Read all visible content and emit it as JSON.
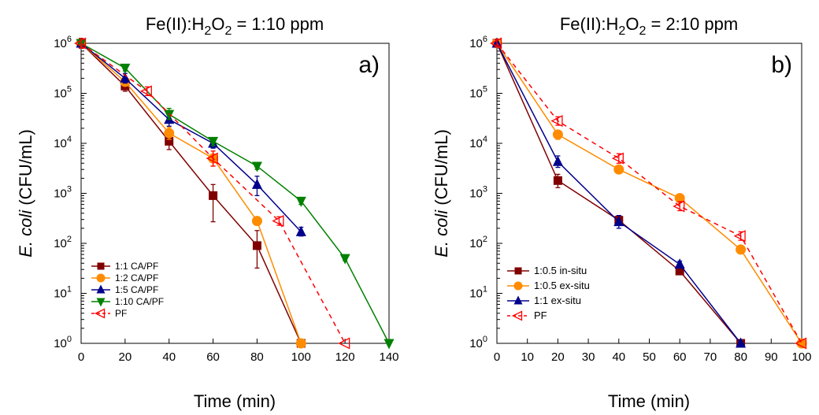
{
  "chart_data": [
    {
      "type": "line",
      "panel_label": "a)",
      "title_parts": [
        "Fe(II):H",
        "2",
        "O",
        "2",
        " = 1:10 ppm"
      ],
      "xlabel": "Time (min)",
      "ylabel_italic": "E. coli",
      "ylabel_rest": " (CFU/mL)",
      "xlim": [
        0,
        140
      ],
      "ylim": [
        1,
        1000000
      ],
      "yscale": "log",
      "xticks": [
        0,
        20,
        40,
        60,
        80,
        100,
        120,
        140
      ],
      "yticks_exp": [
        0,
        1,
        2,
        3,
        4,
        5,
        6
      ],
      "ytick_base": "10",
      "legend_position": "lower-left",
      "series": [
        {
          "name": "1:1 CA/PF",
          "color": "#800000",
          "marker": "square",
          "dashed": false,
          "x": [
            0,
            20,
            40,
            60,
            80,
            100
          ],
          "y": [
            1000000,
            140000,
            11000,
            900,
            90,
            1
          ],
          "err_lo": [
            800000,
            110000,
            7500,
            270,
            32,
            1
          ],
          "err_hi": [
            1250000,
            175000,
            15000,
            1500,
            180,
            1
          ]
        },
        {
          "name": "1:2 CA/PF",
          "color": "#FF8C00",
          "marker": "circle",
          "dashed": false,
          "x": [
            0,
            20,
            40,
            60,
            80,
            100
          ],
          "y": [
            1000000,
            170000,
            16000,
            5000,
            280,
            1
          ],
          "err_lo": [
            800000,
            140000,
            12000,
            3500,
            230,
            1
          ],
          "err_hi": [
            1250000,
            210000,
            21000,
            7000,
            340,
            1
          ]
        },
        {
          "name": "1:5 CA/PF",
          "color": "#00008B",
          "marker": "triangle-up",
          "dashed": false,
          "x": [
            0,
            20,
            40,
            60,
            80,
            100
          ],
          "y": [
            1000000,
            200000,
            30000,
            10000,
            1500,
            170
          ],
          "err_lo": [
            800000,
            160000,
            22000,
            8000,
            900,
            140
          ],
          "err_hi": [
            1250000,
            250000,
            40000,
            12500,
            2200,
            210
          ]
        },
        {
          "name": "1:10 CA/PF",
          "color": "#008000",
          "marker": "triangle-down",
          "dashed": false,
          "x": [
            0,
            20,
            40,
            60,
            80,
            100,
            120,
            140
          ],
          "y": [
            1000000,
            320000,
            38000,
            11000,
            3500,
            700,
            50,
            1
          ],
          "err_lo": [
            800000,
            280000,
            30000,
            9000,
            3000,
            600,
            45,
            1
          ],
          "err_hi": [
            1250000,
            370000,
            50000,
            13000,
            4000,
            800,
            56,
            1
          ]
        },
        {
          "name": "PF",
          "color": "#FF0000",
          "marker": "triangle-left",
          "dashed": true,
          "x": [
            0,
            30,
            60,
            90,
            120
          ],
          "y": [
            1000000,
            110000,
            5000,
            280,
            1
          ],
          "err_lo": [
            800000,
            90000,
            3500,
            230,
            1
          ],
          "err_hi": [
            1250000,
            135000,
            7000,
            340,
            1
          ]
        }
      ]
    },
    {
      "type": "line",
      "panel_label": "b)",
      "title_parts": [
        "Fe(II):H",
        "2",
        "O",
        "2",
        " = 2:10 ppm"
      ],
      "xlabel": "Time (min)",
      "ylabel_italic": "E. coli",
      "ylabel_rest": " (CFU/mL)",
      "xlim": [
        0,
        100
      ],
      "ylim": [
        1,
        1000000
      ],
      "yscale": "log",
      "xticks": [
        0,
        10,
        20,
        30,
        40,
        50,
        60,
        70,
        80,
        90,
        100
      ],
      "yticks_exp": [
        0,
        1,
        2,
        3,
        4,
        5,
        6
      ],
      "ytick_base": "10",
      "legend_position": "lower-left",
      "series": [
        {
          "name": "1:0.5 in-situ",
          "color": "#800000",
          "marker": "square",
          "dashed": false,
          "x": [
            0,
            20,
            40,
            60,
            80
          ],
          "y": [
            1000000,
            1800,
            290,
            28,
            1
          ],
          "err_lo": [
            850000,
            1300,
            230,
            24,
            1
          ],
          "err_hi": [
            1200000,
            2400,
            360,
            33,
            1
          ]
        },
        {
          "name": "1:0.5 ex-situ",
          "color": "#FF8C00",
          "marker": "circle",
          "dashed": false,
          "x": [
            0,
            20,
            40,
            60,
            80,
            100
          ],
          "y": [
            1000000,
            15000,
            3000,
            800,
            75,
            1
          ],
          "err_lo": [
            850000,
            12000,
            2500,
            700,
            65,
            1
          ],
          "err_hi": [
            1200000,
            18000,
            3600,
            920,
            86,
            1
          ]
        },
        {
          "name": "1:1 ex-situ",
          "color": "#00008B",
          "marker": "triangle-up",
          "dashed": false,
          "x": [
            0,
            20,
            40,
            60,
            80
          ],
          "y": [
            1000000,
            4300,
            270,
            38,
            1
          ],
          "err_lo": [
            850000,
            3300,
            200,
            33,
            1
          ],
          "err_hi": [
            1200000,
            5600,
            360,
            44,
            1
          ]
        },
        {
          "name": "PF",
          "color": "#FF0000",
          "marker": "triangle-left",
          "dashed": true,
          "x": [
            0,
            20,
            40,
            60,
            80,
            100
          ],
          "y": [
            1000000,
            28000,
            5000,
            550,
            140,
            1
          ],
          "err_lo": [
            850000,
            23000,
            4000,
            450,
            115,
            1
          ],
          "err_hi": [
            1200000,
            34000,
            6200,
            680,
            170,
            1
          ]
        }
      ]
    }
  ]
}
